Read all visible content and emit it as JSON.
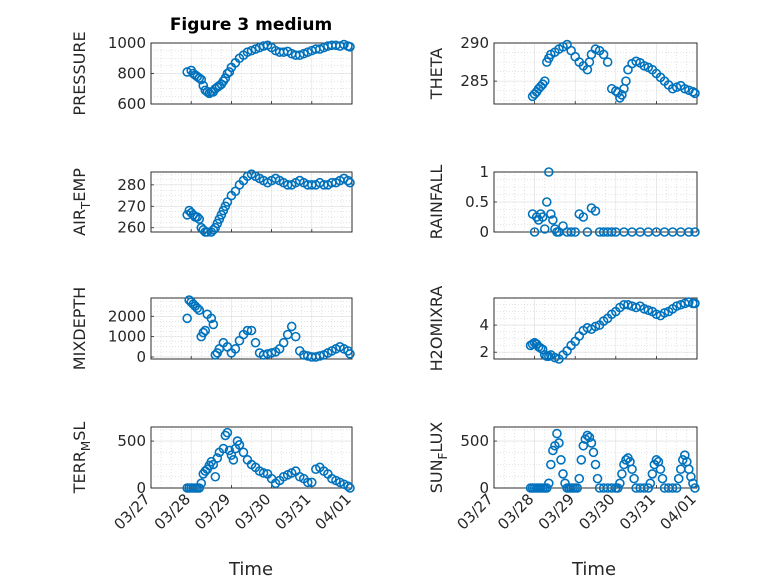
{
  "figure": {
    "title": "Figure 3 medium",
    "marker_color": "#0072BD",
    "x_ticks": [
      "03/27",
      "03/28",
      "03/29",
      "03/30",
      "03/31",
      "04/01"
    ],
    "xlabel": "Time"
  },
  "chart_data": [
    {
      "type": "scatter",
      "id": "pressure",
      "ylabel": "PRESSURE",
      "ylim": [
        600,
        1000
      ],
      "yticks": [
        600,
        800,
        1000
      ],
      "grid": true,
      "x": [
        27.9,
        28.0,
        28.05,
        28.1,
        28.15,
        28.2,
        28.25,
        28.3,
        28.35,
        28.4,
        28.45,
        28.5,
        28.55,
        28.6,
        28.65,
        28.7,
        28.75,
        28.8,
        28.85,
        28.9,
        28.95,
        29.0,
        29.1,
        29.2,
        29.3,
        29.4,
        29.5,
        29.6,
        29.7,
        29.8,
        29.9,
        30.0,
        30.1,
        30.2,
        30.3,
        30.4,
        30.5,
        30.6,
        30.7,
        30.8,
        30.9,
        31.0,
        31.1,
        31.2,
        31.3,
        31.4,
        31.5,
        31.6,
        31.7,
        31.8,
        31.9,
        31.95
      ],
      "y": [
        810,
        820,
        800,
        790,
        780,
        770,
        760,
        720,
        690,
        680,
        670,
        680,
        680,
        700,
        710,
        720,
        730,
        750,
        770,
        800,
        810,
        840,
        870,
        900,
        920,
        940,
        950,
        960,
        970,
        980,
        985,
        970,
        950,
        940,
        940,
        945,
        930,
        920,
        920,
        930,
        940,
        950,
        960,
        960,
        970,
        980,
        985,
        985,
        980,
        990,
        980,
        975
      ]
    },
    {
      "type": "scatter",
      "id": "theta",
      "ylabel": "THETA",
      "ylim": [
        282,
        290
      ],
      "yticks": [
        285,
        290
      ],
      "grid": true,
      "x": [
        27.95,
        28.0,
        28.05,
        28.1,
        28.15,
        28.2,
        28.25,
        28.3,
        28.35,
        28.4,
        28.5,
        28.6,
        28.7,
        28.8,
        28.9,
        29.0,
        29.1,
        29.2,
        29.3,
        29.35,
        29.4,
        29.5,
        29.6,
        29.7,
        29.8,
        29.9,
        30.0,
        30.05,
        30.1,
        30.15,
        30.2,
        30.25,
        30.3,
        30.4,
        30.5,
        30.6,
        30.7,
        30.8,
        30.9,
        31.0,
        31.1,
        31.2,
        31.3,
        31.4,
        31.5,
        31.6,
        31.7,
        31.8,
        31.9,
        31.95
      ],
      "y": [
        283,
        283.3,
        283.6,
        284,
        284.3,
        284.6,
        285,
        287.5,
        288,
        288.5,
        288.8,
        289.2,
        289.5,
        289.8,
        289,
        288.2,
        287.5,
        287,
        286.5,
        287.5,
        288.5,
        289.2,
        289,
        288.5,
        287.5,
        284,
        283.7,
        283.5,
        282.8,
        283.2,
        284,
        285,
        286.5,
        287.3,
        287.6,
        287.4,
        287,
        286.8,
        286.5,
        286,
        285.5,
        285,
        284.5,
        284,
        284.2,
        284.4,
        284,
        283.8,
        283.6,
        283.4
      ]
    },
    {
      "type": "scatter",
      "id": "air_temp",
      "ylabel": "AIR_TEMP",
      "ylabel_main": "AIR",
      "ylabel_sub": "T",
      "ylabel_rest": "EMP",
      "ylim": [
        258,
        286
      ],
      "yticks": [
        260,
        270,
        280
      ],
      "grid": true,
      "x": [
        27.9,
        27.95,
        28.0,
        28.05,
        28.1,
        28.15,
        28.2,
        28.25,
        28.3,
        28.35,
        28.4,
        28.5,
        28.55,
        28.6,
        28.65,
        28.7,
        28.75,
        28.8,
        28.85,
        28.9,
        29.0,
        29.1,
        29.2,
        29.3,
        29.4,
        29.5,
        29.6,
        29.7,
        29.8,
        29.9,
        30.0,
        30.1,
        30.2,
        30.3,
        30.4,
        30.5,
        30.6,
        30.7,
        30.8,
        30.9,
        31.0,
        31.1,
        31.2,
        31.3,
        31.4,
        31.5,
        31.6,
        31.7,
        31.8,
        31.9,
        31.95
      ],
      "y": [
        266,
        268,
        267,
        266,
        265,
        265,
        264,
        260,
        259,
        258,
        258,
        258,
        259,
        260,
        262,
        264,
        266,
        268,
        270,
        272,
        275,
        277,
        280,
        282,
        284,
        285,
        284,
        283,
        282,
        281,
        282,
        283,
        282,
        281,
        280,
        280,
        281,
        282,
        281,
        280,
        280,
        280,
        281,
        280,
        280,
        281,
        281,
        282,
        283,
        282,
        281
      ]
    },
    {
      "type": "scatter",
      "id": "rainfall",
      "ylabel": "RAINFALL",
      "ylim": [
        0,
        1
      ],
      "yticks": [
        0,
        0.5,
        1
      ],
      "grid": true,
      "x": [
        27.95,
        28.0,
        28.05,
        28.1,
        28.15,
        28.2,
        28.25,
        28.3,
        28.35,
        28.4,
        28.45,
        28.5,
        28.55,
        28.6,
        28.7,
        28.8,
        28.9,
        29.0,
        29.1,
        29.2,
        29.3,
        29.4,
        29.5,
        29.6,
        29.7,
        29.8,
        29.9,
        30.0,
        30.2,
        30.4,
        30.6,
        30.8,
        31.0,
        31.2,
        31.4,
        31.6,
        31.8,
        31.95
      ],
      "y": [
        0.3,
        0,
        0.25,
        0.2,
        0.3,
        0.25,
        0.05,
        0.5,
        1,
        0.3,
        0.2,
        0.05,
        0,
        0,
        0.1,
        0,
        0,
        0,
        0.3,
        0.25,
        0,
        0.4,
        0.35,
        0,
        0,
        0,
        0,
        0,
        0,
        0,
        0,
        0,
        0,
        0,
        0,
        0,
        0,
        0
      ]
    },
    {
      "type": "scatter",
      "id": "mixdepth",
      "ylabel": "MIXDEPTH",
      "ylim": [
        -100,
        2900
      ],
      "yticks": [
        0,
        1000,
        2000
      ],
      "grid": true,
      "x": [
        27.9,
        27.95,
        28.0,
        28.05,
        28.1,
        28.15,
        28.2,
        28.25,
        28.3,
        28.35,
        28.4,
        28.5,
        28.55,
        28.6,
        28.65,
        28.7,
        28.8,
        28.9,
        29.0,
        29.1,
        29.2,
        29.3,
        29.4,
        29.5,
        29.6,
        29.7,
        29.8,
        29.9,
        30.0,
        30.1,
        30.2,
        30.3,
        30.4,
        30.5,
        30.6,
        30.7,
        30.8,
        30.9,
        31.0,
        31.1,
        31.2,
        31.3,
        31.4,
        31.5,
        31.6,
        31.7,
        31.8,
        31.9,
        31.95
      ],
      "y": [
        1900,
        2800,
        2700,
        2600,
        2500,
        2400,
        2300,
        1000,
        1200,
        1300,
        2100,
        1900,
        1600,
        100,
        200,
        400,
        700,
        500,
        200,
        400,
        800,
        1100,
        1300,
        1300,
        700,
        200,
        100,
        150,
        200,
        250,
        400,
        700,
        1100,
        1500,
        1000,
        300,
        100,
        50,
        0,
        0,
        50,
        100,
        200,
        300,
        400,
        500,
        400,
        300,
        150
      ]
    },
    {
      "type": "scatter",
      "id": "h2omixra",
      "ylabel": "H2OMIXRA",
      "ylim": [
        1.5,
        6
      ],
      "yticks": [
        2,
        4
      ],
      "grid": true,
      "x": [
        27.9,
        27.95,
        28.0,
        28.05,
        28.1,
        28.15,
        28.2,
        28.25,
        28.3,
        28.35,
        28.4,
        28.5,
        28.6,
        28.7,
        28.8,
        28.9,
        29.0,
        29.1,
        29.2,
        29.3,
        29.4,
        29.5,
        29.6,
        29.7,
        29.8,
        29.9,
        30.0,
        30.1,
        30.2,
        30.3,
        30.4,
        30.5,
        30.6,
        30.7,
        30.8,
        30.9,
        31.0,
        31.1,
        31.2,
        31.3,
        31.4,
        31.5,
        31.6,
        31.7,
        31.8,
        31.9,
        31.95
      ],
      "y": [
        2.5,
        2.6,
        2.7,
        2.6,
        2.4,
        2.3,
        2.2,
        1.8,
        1.7,
        1.7,
        1.8,
        1.6,
        1.5,
        1.8,
        2.1,
        2.5,
        2.8,
        3.2,
        3.6,
        3.8,
        3.7,
        3.9,
        4.0,
        4.3,
        4.5,
        4.8,
        5.0,
        5.3,
        5.5,
        5.5,
        5.4,
        5.3,
        5.4,
        5.2,
        5.1,
        5.0,
        4.8,
        4.7,
        4.9,
        5.0,
        5.2,
        5.4,
        5.5,
        5.6,
        5.7,
        5.6,
        5.6
      ]
    },
    {
      "type": "scatter",
      "id": "terr_msl",
      "ylabel": "TERR_MSL",
      "ylabel_main": "TERR",
      "ylabel_sub": "M",
      "ylabel_rest": "SL",
      "ylim": [
        0,
        650
      ],
      "yticks": [
        0,
        500
      ],
      "grid": true,
      "x": [
        27.9,
        27.95,
        28.0,
        28.05,
        28.1,
        28.15,
        28.2,
        28.25,
        28.3,
        28.35,
        28.4,
        28.45,
        28.5,
        28.55,
        28.6,
        28.65,
        28.7,
        28.8,
        28.85,
        28.9,
        28.95,
        29.0,
        29.05,
        29.1,
        29.15,
        29.2,
        29.3,
        29.4,
        29.5,
        29.6,
        29.7,
        29.8,
        29.9,
        30.0,
        30.1,
        30.2,
        30.3,
        30.4,
        30.5,
        30.6,
        30.7,
        30.8,
        30.9,
        31.0,
        31.1,
        31.2,
        31.3,
        31.4,
        31.5,
        31.6,
        31.7,
        31.8,
        31.9,
        31.95
      ],
      "y": [
        0,
        0,
        0,
        0,
        0,
        0,
        0,
        50,
        150,
        180,
        200,
        240,
        280,
        250,
        120,
        320,
        380,
        420,
        560,
        590,
        400,
        350,
        300,
        420,
        500,
        460,
        380,
        300,
        250,
        220,
        180,
        160,
        150,
        100,
        50,
        80,
        120,
        140,
        160,
        180,
        120,
        100,
        60,
        60,
        200,
        220,
        180,
        150,
        100,
        80,
        60,
        40,
        20,
        0
      ]
    },
    {
      "type": "scatter",
      "id": "sun_flux",
      "ylabel": "SUN_FLUX",
      "ylabel_main": "SUN",
      "ylabel_sub": "F",
      "ylabel_rest": "LUX",
      "ylim": [
        0,
        650
      ],
      "yticks": [
        0,
        500
      ],
      "grid": true,
      "x": [
        27.9,
        27.95,
        28.0,
        28.05,
        28.1,
        28.15,
        28.2,
        28.25,
        28.3,
        28.35,
        28.4,
        28.45,
        28.5,
        28.55,
        28.6,
        28.65,
        28.7,
        28.75,
        28.8,
        28.85,
        28.9,
        28.95,
        29.0,
        29.05,
        29.1,
        29.15,
        29.2,
        29.25,
        29.3,
        29.35,
        29.4,
        29.45,
        29.5,
        29.55,
        29.6,
        29.7,
        29.8,
        29.9,
        30.0,
        30.05,
        30.1,
        30.15,
        30.2,
        30.25,
        30.3,
        30.35,
        30.4,
        30.45,
        30.5,
        30.6,
        30.7,
        30.8,
        30.85,
        30.9,
        30.95,
        31.0,
        31.05,
        31.1,
        31.15,
        31.2,
        31.3,
        31.4,
        31.5,
        31.55,
        31.6,
        31.65,
        31.7,
        31.75,
        31.8,
        31.85,
        31.9,
        31.95
      ],
      "y": [
        0,
        0,
        0,
        0,
        0,
        0,
        0,
        0,
        0,
        50,
        250,
        400,
        450,
        580,
        480,
        300,
        150,
        50,
        0,
        0,
        0,
        0,
        0,
        0,
        100,
        300,
        450,
        520,
        560,
        540,
        480,
        380,
        250,
        100,
        0,
        0,
        0,
        0,
        0,
        0,
        50,
        150,
        250,
        300,
        320,
        280,
        200,
        100,
        0,
        0,
        0,
        0,
        50,
        150,
        250,
        300,
        280,
        200,
        100,
        0,
        0,
        0,
        0,
        100,
        200,
        300,
        350,
        280,
        200,
        120,
        50,
        0
      ]
    }
  ]
}
